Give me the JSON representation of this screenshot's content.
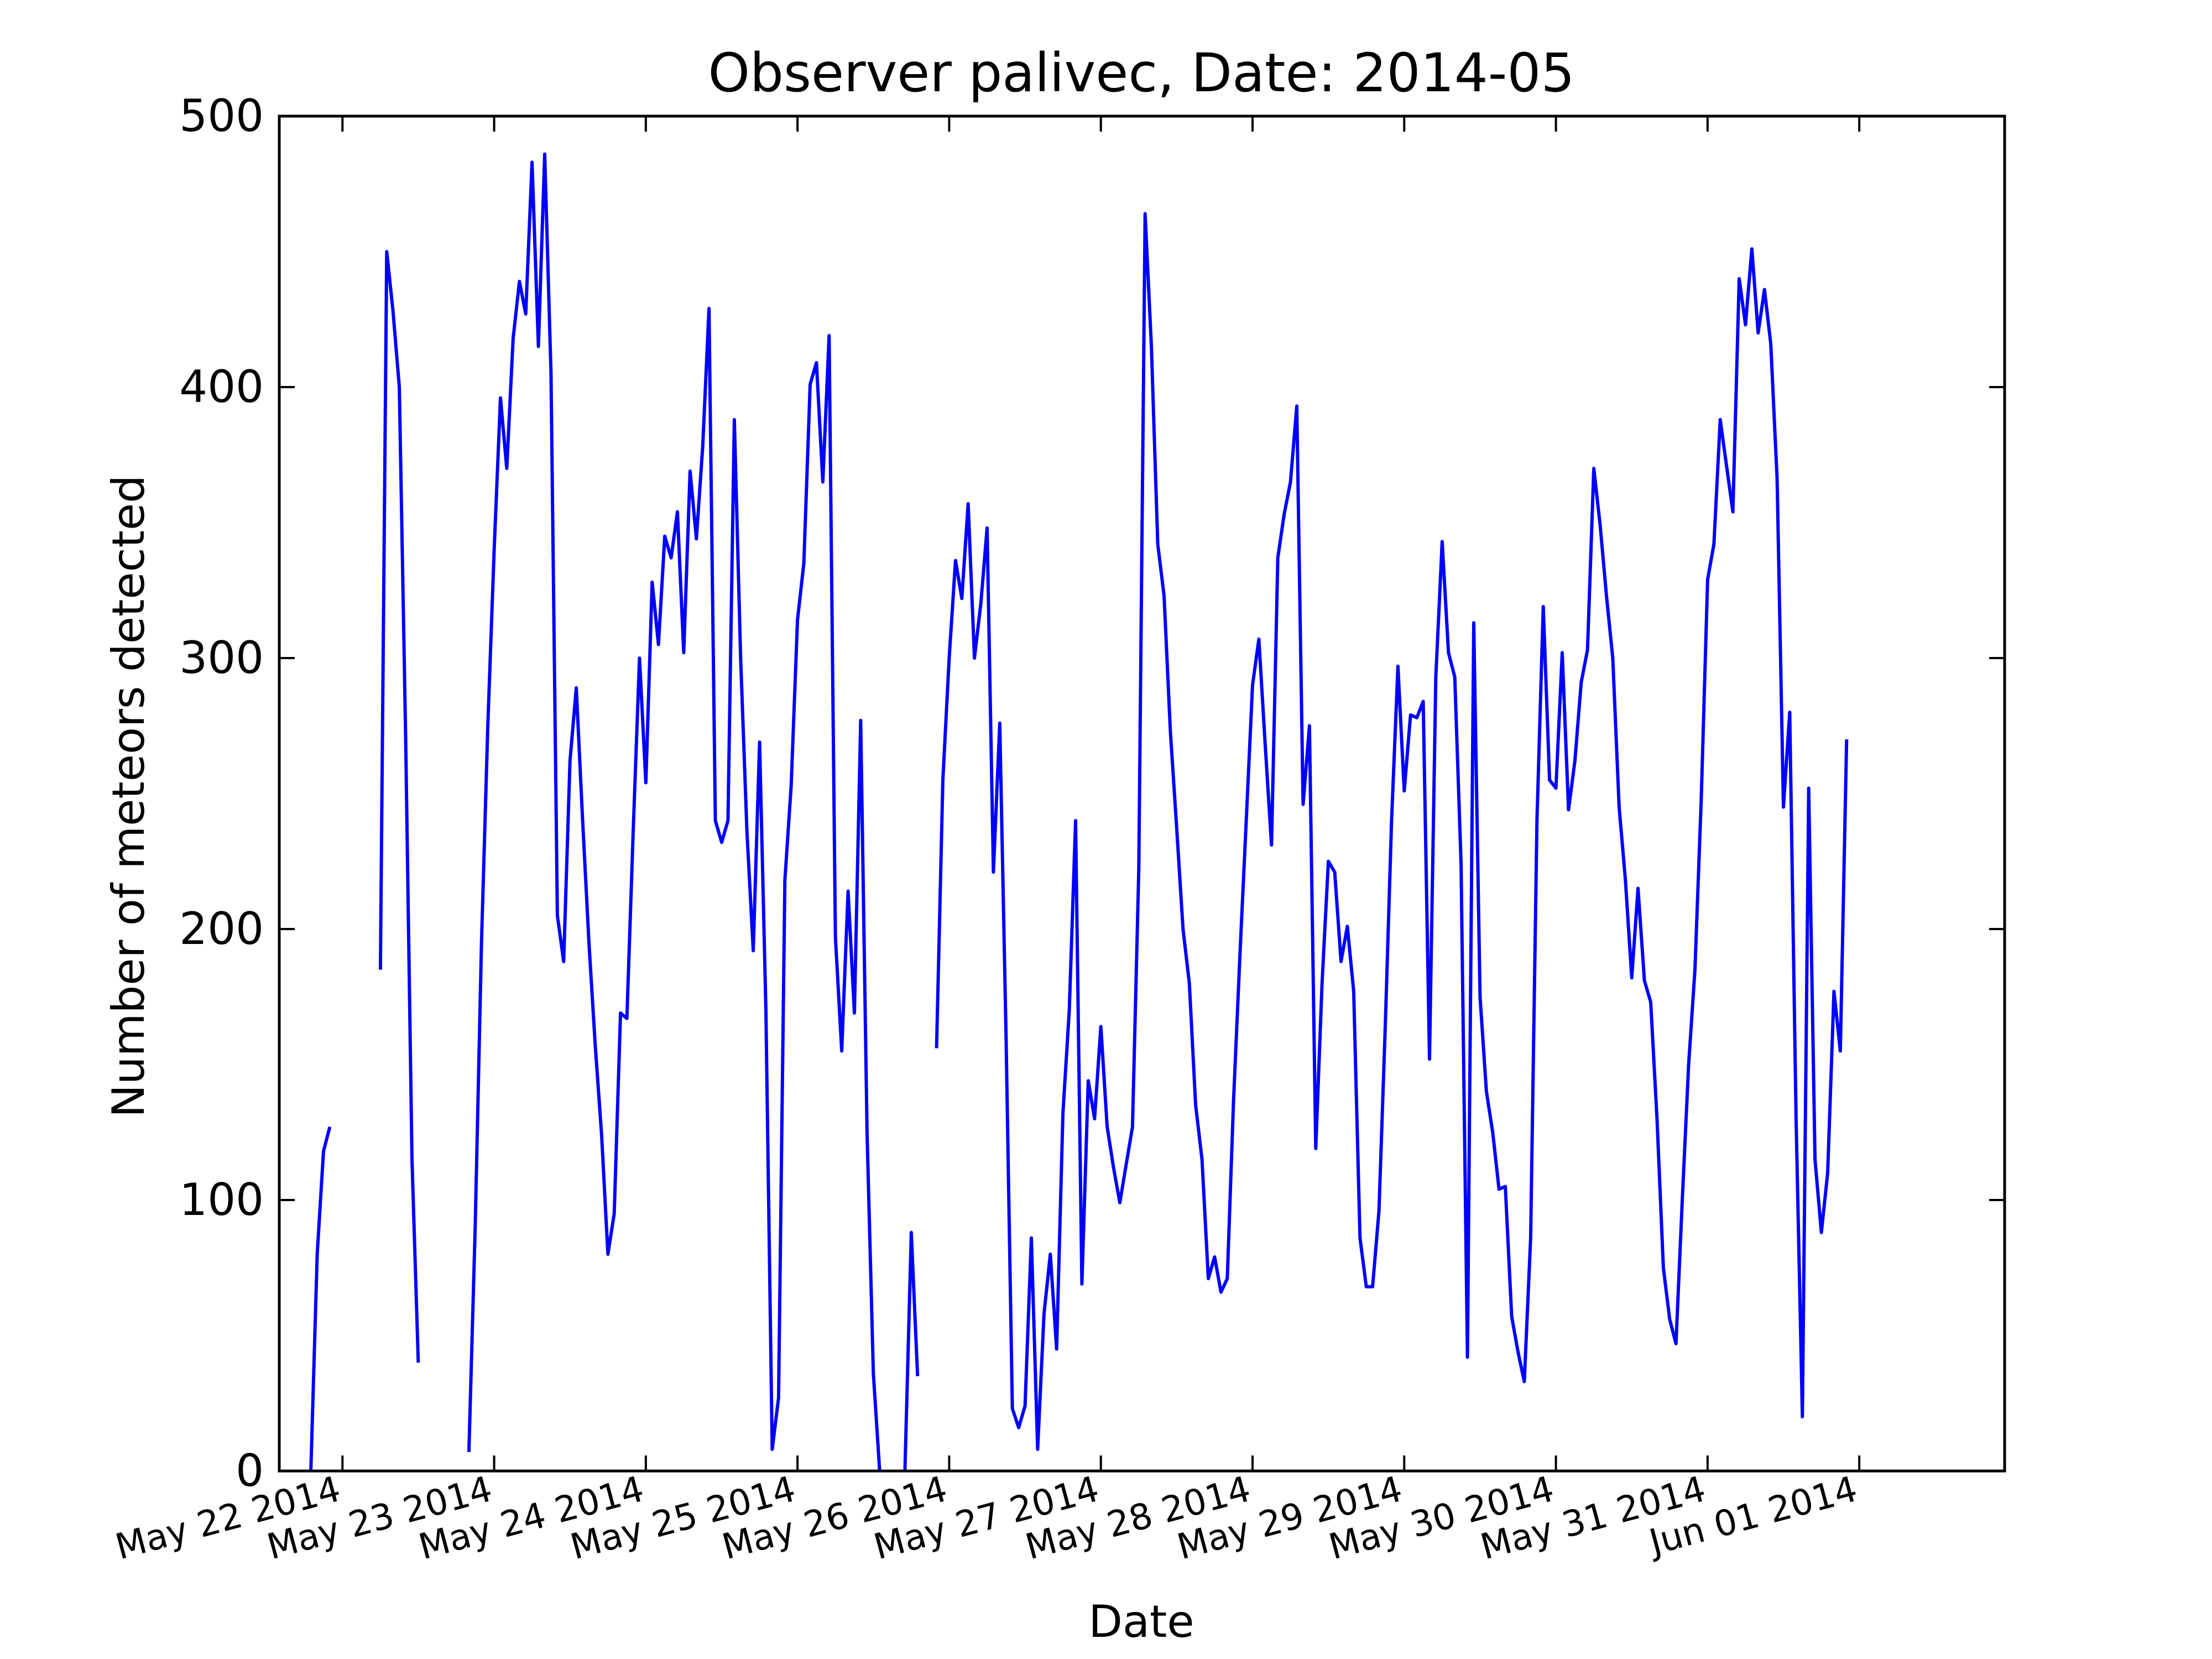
{
  "chart_data": {
    "type": "line",
    "title": "Observer palivec, Date: 2014-05",
    "xlabel": "Date",
    "ylabel": "Number of meteors detected",
    "ylim": [
      0,
      500
    ],
    "xlim": [
      "2014-05-21 14:00",
      "2014-06-01 23:00"
    ],
    "yticks": [
      0,
      100,
      200,
      300,
      400,
      500
    ],
    "xticks": [
      {
        "date": "2014-05-22",
        "label": "May 22 2014"
      },
      {
        "date": "2014-05-23",
        "label": "May 23 2014"
      },
      {
        "date": "2014-05-24",
        "label": "May 24 2014"
      },
      {
        "date": "2014-05-25",
        "label": "May 25 2014"
      },
      {
        "date": "2014-05-26",
        "label": "May 26 2014"
      },
      {
        "date": "2014-05-27",
        "label": "May 27 2014"
      },
      {
        "date": "2014-05-28",
        "label": "May 28 2014"
      },
      {
        "date": "2014-05-29",
        "label": "May 29 2014"
      },
      {
        "date": "2014-05-30",
        "label": "May 30 2014"
      },
      {
        "date": "2014-05-31",
        "label": "May 31 2014"
      },
      {
        "date": "2014-06-01",
        "label": "Jun 01 2014"
      }
    ],
    "grid": false,
    "series": [
      {
        "color": "#0000ff",
        "segments": [
          [
            [
              "2014-05-21 19:00",
              0
            ],
            [
              "2014-05-21 20:00",
              80
            ],
            [
              "2014-05-21 21:00",
              118
            ],
            [
              "2014-05-21 22:00",
              127
            ]
          ],
          [
            [
              "2014-05-22 06:00",
              185
            ],
            [
              "2014-05-22 07:00",
              450
            ],
            [
              "2014-05-22 08:00",
              428
            ],
            [
              "2014-05-22 09:00",
              400
            ],
            [
              "2014-05-22 10:00",
              270
            ],
            [
              "2014-05-22 11:00",
              115
            ],
            [
              "2014-05-22 12:00",
              40
            ]
          ],
          [
            [
              "2014-05-22 20:00",
              7
            ],
            [
              "2014-05-22 21:00",
              90
            ],
            [
              "2014-05-22 22:00",
              195
            ],
            [
              "2014-05-22 23:00",
              275
            ],
            [
              "2014-05-23 00:00",
              340
            ],
            [
              "2014-05-23 01:00",
              396
            ],
            [
              "2014-05-23 02:00",
              370
            ],
            [
              "2014-05-23 03:00",
              418
            ],
            [
              "2014-05-23 04:00",
              439
            ],
            [
              "2014-05-23 05:00",
              427
            ],
            [
              "2014-05-23 06:00",
              483
            ],
            [
              "2014-05-23 07:00",
              415
            ],
            [
              "2014-05-23 08:00",
              486
            ],
            [
              "2014-05-23 09:00",
              405
            ],
            [
              "2014-05-23 10:00",
              205
            ],
            [
              "2014-05-23 11:00",
              188
            ],
            [
              "2014-05-23 12:00",
              262
            ],
            [
              "2014-05-23 13:00",
              289
            ],
            [
              "2014-05-23 14:00",
              240
            ],
            [
              "2014-05-23 15:00",
              195
            ],
            [
              "2014-05-23 16:00",
              157
            ],
            [
              "2014-05-23 17:00",
              124
            ],
            [
              "2014-05-23 18:00",
              80
            ],
            [
              "2014-05-23 19:00",
              95
            ],
            [
              "2014-05-23 20:00",
              169
            ],
            [
              "2014-05-23 21:00",
              167
            ],
            [
              "2014-05-23 22:00",
              236
            ],
            [
              "2014-05-23 23:00",
              300
            ],
            [
              "2014-05-24 00:00",
              254
            ],
            [
              "2014-05-24 01:00",
              328
            ],
            [
              "2014-05-24 02:00",
              305
            ],
            [
              "2014-05-24 03:00",
              345
            ],
            [
              "2014-05-24 04:00",
              337
            ],
            [
              "2014-05-24 05:00",
              354
            ],
            [
              "2014-05-24 06:00",
              302
            ],
            [
              "2014-05-24 07:00",
              369
            ],
            [
              "2014-05-24 08:00",
              344
            ],
            [
              "2014-05-24 09:00",
              378
            ],
            [
              "2014-05-24 10:00",
              429
            ],
            [
              "2014-05-24 11:00",
              240
            ],
            [
              "2014-05-24 12:00",
              232
            ],
            [
              "2014-05-24 13:00",
              240
            ],
            [
              "2014-05-24 14:00",
              388
            ],
            [
              "2014-05-24 15:00",
              300
            ],
            [
              "2014-05-24 16:00",
              236
            ],
            [
              "2014-05-24 17:00",
              192
            ],
            [
              "2014-05-24 18:00",
              269
            ],
            [
              "2014-05-24 19:00",
              170
            ],
            [
              "2014-05-24 20:00",
              8
            ],
            [
              "2014-05-24 21:00",
              27
            ],
            [
              "2014-05-24 22:00",
              218
            ],
            [
              "2014-05-24 23:00",
              253
            ],
            [
              "2014-05-25 00:00",
              314
            ],
            [
              "2014-05-25 01:00",
              335
            ],
            [
              "2014-05-25 02:00",
              401
            ],
            [
              "2014-05-25 03:00",
              409
            ],
            [
              "2014-05-25 04:00",
              365
            ],
            [
              "2014-05-25 05:00",
              419
            ],
            [
              "2014-05-25 06:00",
              197
            ],
            [
              "2014-05-25 07:00",
              155
            ],
            [
              "2014-05-25 08:00",
              214
            ],
            [
              "2014-05-25 09:00",
              169
            ],
            [
              "2014-05-25 10:00",
              277
            ],
            [
              "2014-05-25 11:00",
              125
            ],
            [
              "2014-05-25 12:00",
              36
            ],
            [
              "2014-05-25 13:00",
              0
            ]
          ],
          [
            [
              "2014-05-25 17:00",
              0
            ],
            [
              "2014-05-25 18:00",
              88
            ],
            [
              "2014-05-25 19:00",
              35
            ]
          ],
          [
            [
              "2014-05-25 22:00",
              156
            ],
            [
              "2014-05-25 23:00",
              255
            ],
            [
              "2014-05-26 00:00",
              300
            ],
            [
              "2014-05-26 01:00",
              336
            ],
            [
              "2014-05-26 02:00",
              322
            ],
            [
              "2014-05-26 03:00",
              357
            ],
            [
              "2014-05-26 04:00",
              300
            ],
            [
              "2014-05-26 05:00",
              320
            ],
            [
              "2014-05-26 06:00",
              348
            ],
            [
              "2014-05-26 07:00",
              221
            ],
            [
              "2014-05-26 08:00",
              276
            ],
            [
              "2014-05-26 09:00",
              160
            ],
            [
              "2014-05-26 10:00",
              23
            ],
            [
              "2014-05-26 11:00",
              16
            ],
            [
              "2014-05-26 12:00",
              24
            ],
            [
              "2014-05-26 13:00",
              86
            ],
            [
              "2014-05-26 14:00",
              8
            ],
            [
              "2014-05-26 15:00",
              58
            ],
            [
              "2014-05-26 16:00",
              80
            ],
            [
              "2014-05-26 17:00",
              45
            ],
            [
              "2014-05-26 18:00",
              132
            ],
            [
              "2014-05-26 19:00",
              170
            ],
            [
              "2014-05-26 20:00",
              240
            ],
            [
              "2014-05-26 21:00",
              69
            ],
            [
              "2014-05-26 22:00",
              144
            ],
            [
              "2014-05-26 23:00",
              130
            ],
            [
              "2014-05-27 00:00",
              164
            ],
            [
              "2014-05-27 01:00",
              127
            ],
            [
              "2014-05-27 02:00",
              112
            ],
            [
              "2014-05-27 03:00",
              99
            ],
            [
              "2014-05-27 04:00",
              113
            ],
            [
              "2014-05-27 05:00",
              127
            ],
            [
              "2014-05-27 06:00",
              222
            ],
            [
              "2014-05-27 07:00",
              464
            ],
            [
              "2014-05-27 08:00",
              415
            ],
            [
              "2014-05-27 09:00",
              342
            ],
            [
              "2014-05-27 10:00",
              323
            ],
            [
              "2014-05-27 11:00",
              273
            ],
            [
              "2014-05-27 12:00",
              237
            ],
            [
              "2014-05-27 13:00",
              200
            ],
            [
              "2014-05-27 14:00",
              180
            ],
            [
              "2014-05-27 15:00",
              135
            ],
            [
              "2014-05-27 16:00",
              115
            ],
            [
              "2014-05-27 17:00",
              71
            ],
            [
              "2014-05-27 18:00",
              79
            ],
            [
              "2014-05-27 19:00",
              66
            ],
            [
              "2014-05-27 20:00",
              71
            ],
            [
              "2014-05-27 21:00",
              137
            ],
            [
              "2014-05-27 22:00",
              190
            ],
            [
              "2014-05-27 23:00",
              240
            ],
            [
              "2014-05-28 00:00",
              290
            ],
            [
              "2014-05-28 01:00",
              307
            ],
            [
              "2014-05-28 02:00",
              268
            ],
            [
              "2014-05-28 03:00",
              231
            ],
            [
              "2014-05-28 04:00",
              337
            ],
            [
              "2014-05-28 05:00",
              353
            ],
            [
              "2014-05-28 06:00",
              365
            ],
            [
              "2014-05-28 07:00",
              393
            ],
            [
              "2014-05-28 08:00",
              246
            ],
            [
              "2014-05-28 09:00",
              275
            ],
            [
              "2014-05-28 10:00",
              119
            ],
            [
              "2014-05-28 11:00",
              180
            ],
            [
              "2014-05-28 12:00",
              225
            ],
            [
              "2014-05-28 13:00",
              221
            ],
            [
              "2014-05-28 14:00",
              188
            ],
            [
              "2014-05-28 15:00",
              201
            ],
            [
              "2014-05-28 16:00",
              177
            ],
            [
              "2014-05-28 17:00",
              86
            ],
            [
              "2014-05-28 18:00",
              68
            ],
            [
              "2014-05-28 19:00",
              68
            ],
            [
              "2014-05-28 20:00",
              96
            ],
            [
              "2014-05-28 21:00",
              164
            ],
            [
              "2014-05-28 22:00",
              240
            ],
            [
              "2014-05-28 23:00",
              297
            ],
            [
              "2014-05-29 00:00",
              251
            ],
            [
              "2014-05-29 01:00",
              279
            ],
            [
              "2014-05-29 02:00",
              278
            ],
            [
              "2014-05-29 03:00",
              284
            ],
            [
              "2014-05-29 04:00",
              152
            ],
            [
              "2014-05-29 05:00",
              293
            ],
            [
              "2014-05-29 06:00",
              343
            ],
            [
              "2014-05-29 07:00",
              302
            ],
            [
              "2014-05-29 08:00",
              293
            ],
            [
              "2014-05-29 09:00",
              224
            ],
            [
              "2014-05-29 10:00",
              42
            ],
            [
              "2014-05-29 11:00",
              313
            ],
            [
              "2014-05-29 12:00",
              175
            ],
            [
              "2014-05-29 13:00",
              140
            ],
            [
              "2014-05-29 14:00",
              125
            ],
            [
              "2014-05-29 15:00",
              104
            ],
            [
              "2014-05-29 16:00",
              105
            ],
            [
              "2014-05-29 17:00",
              57
            ],
            [
              "2014-05-29 18:00",
              44
            ],
            [
              "2014-05-29 19:00",
              33
            ],
            [
              "2014-05-29 20:00",
              86
            ],
            [
              "2014-05-29 21:00",
              240
            ],
            [
              "2014-05-29 22:00",
              319
            ],
            [
              "2014-05-29 23:00",
              255
            ],
            [
              "2014-05-30 00:00",
              252
            ],
            [
              "2014-05-30 01:00",
              302
            ],
            [
              "2014-05-30 02:00",
              244
            ],
            [
              "2014-05-30 03:00",
              262
            ],
            [
              "2014-05-30 04:00",
              291
            ],
            [
              "2014-05-30 05:00",
              303
            ],
            [
              "2014-05-30 06:00",
              370
            ],
            [
              "2014-05-30 07:00",
              349
            ],
            [
              "2014-05-30 08:00",
              323
            ],
            [
              "2014-05-30 09:00",
              300
            ],
            [
              "2014-05-30 10:00",
              245
            ],
            [
              "2014-05-30 11:00",
              218
            ],
            [
              "2014-05-30 12:00",
              182
            ],
            [
              "2014-05-30 13:00",
              215
            ],
            [
              "2014-05-30 14:00",
              181
            ],
            [
              "2014-05-30 15:00",
              173
            ],
            [
              "2014-05-30 16:00",
              130
            ],
            [
              "2014-05-30 17:00",
              75
            ],
            [
              "2014-05-30 18:00",
              56
            ],
            [
              "2014-05-30 19:00",
              47
            ],
            [
              "2014-05-30 20:00",
              100
            ],
            [
              "2014-05-30 21:00",
              150
            ],
            [
              "2014-05-30 22:00",
              185
            ],
            [
              "2014-05-30 23:00",
              248
            ],
            [
              "2014-05-31 00:00",
              329
            ],
            [
              "2014-05-31 01:00",
              342
            ],
            [
              "2014-05-31 02:00",
              388
            ],
            [
              "2014-05-31 03:00",
              371
            ],
            [
              "2014-05-31 04:00",
              354
            ],
            [
              "2014-05-31 05:00",
              440
            ],
            [
              "2014-05-31 06:00",
              423
            ],
            [
              "2014-05-31 07:00",
              451
            ],
            [
              "2014-05-31 08:00",
              420
            ],
            [
              "2014-05-31 09:00",
              436
            ],
            [
              "2014-05-31 10:00",
              416
            ],
            [
              "2014-05-31 11:00",
              366
            ],
            [
              "2014-05-31 12:00",
              245
            ],
            [
              "2014-05-31 13:00",
              280
            ],
            [
              "2014-05-31 14:00",
              130
            ],
            [
              "2014-05-31 15:00",
              20
            ],
            [
              "2014-05-31 16:00",
              252
            ],
            [
              "2014-05-31 17:00",
              115
            ],
            [
              "2014-05-31 18:00",
              88
            ],
            [
              "2014-05-31 19:00",
              110
            ],
            [
              "2014-05-31 20:00",
              177
            ],
            [
              "2014-05-31 21:00",
              155
            ],
            [
              "2014-05-31 22:00",
              270
            ]
          ]
        ]
      }
    ]
  }
}
